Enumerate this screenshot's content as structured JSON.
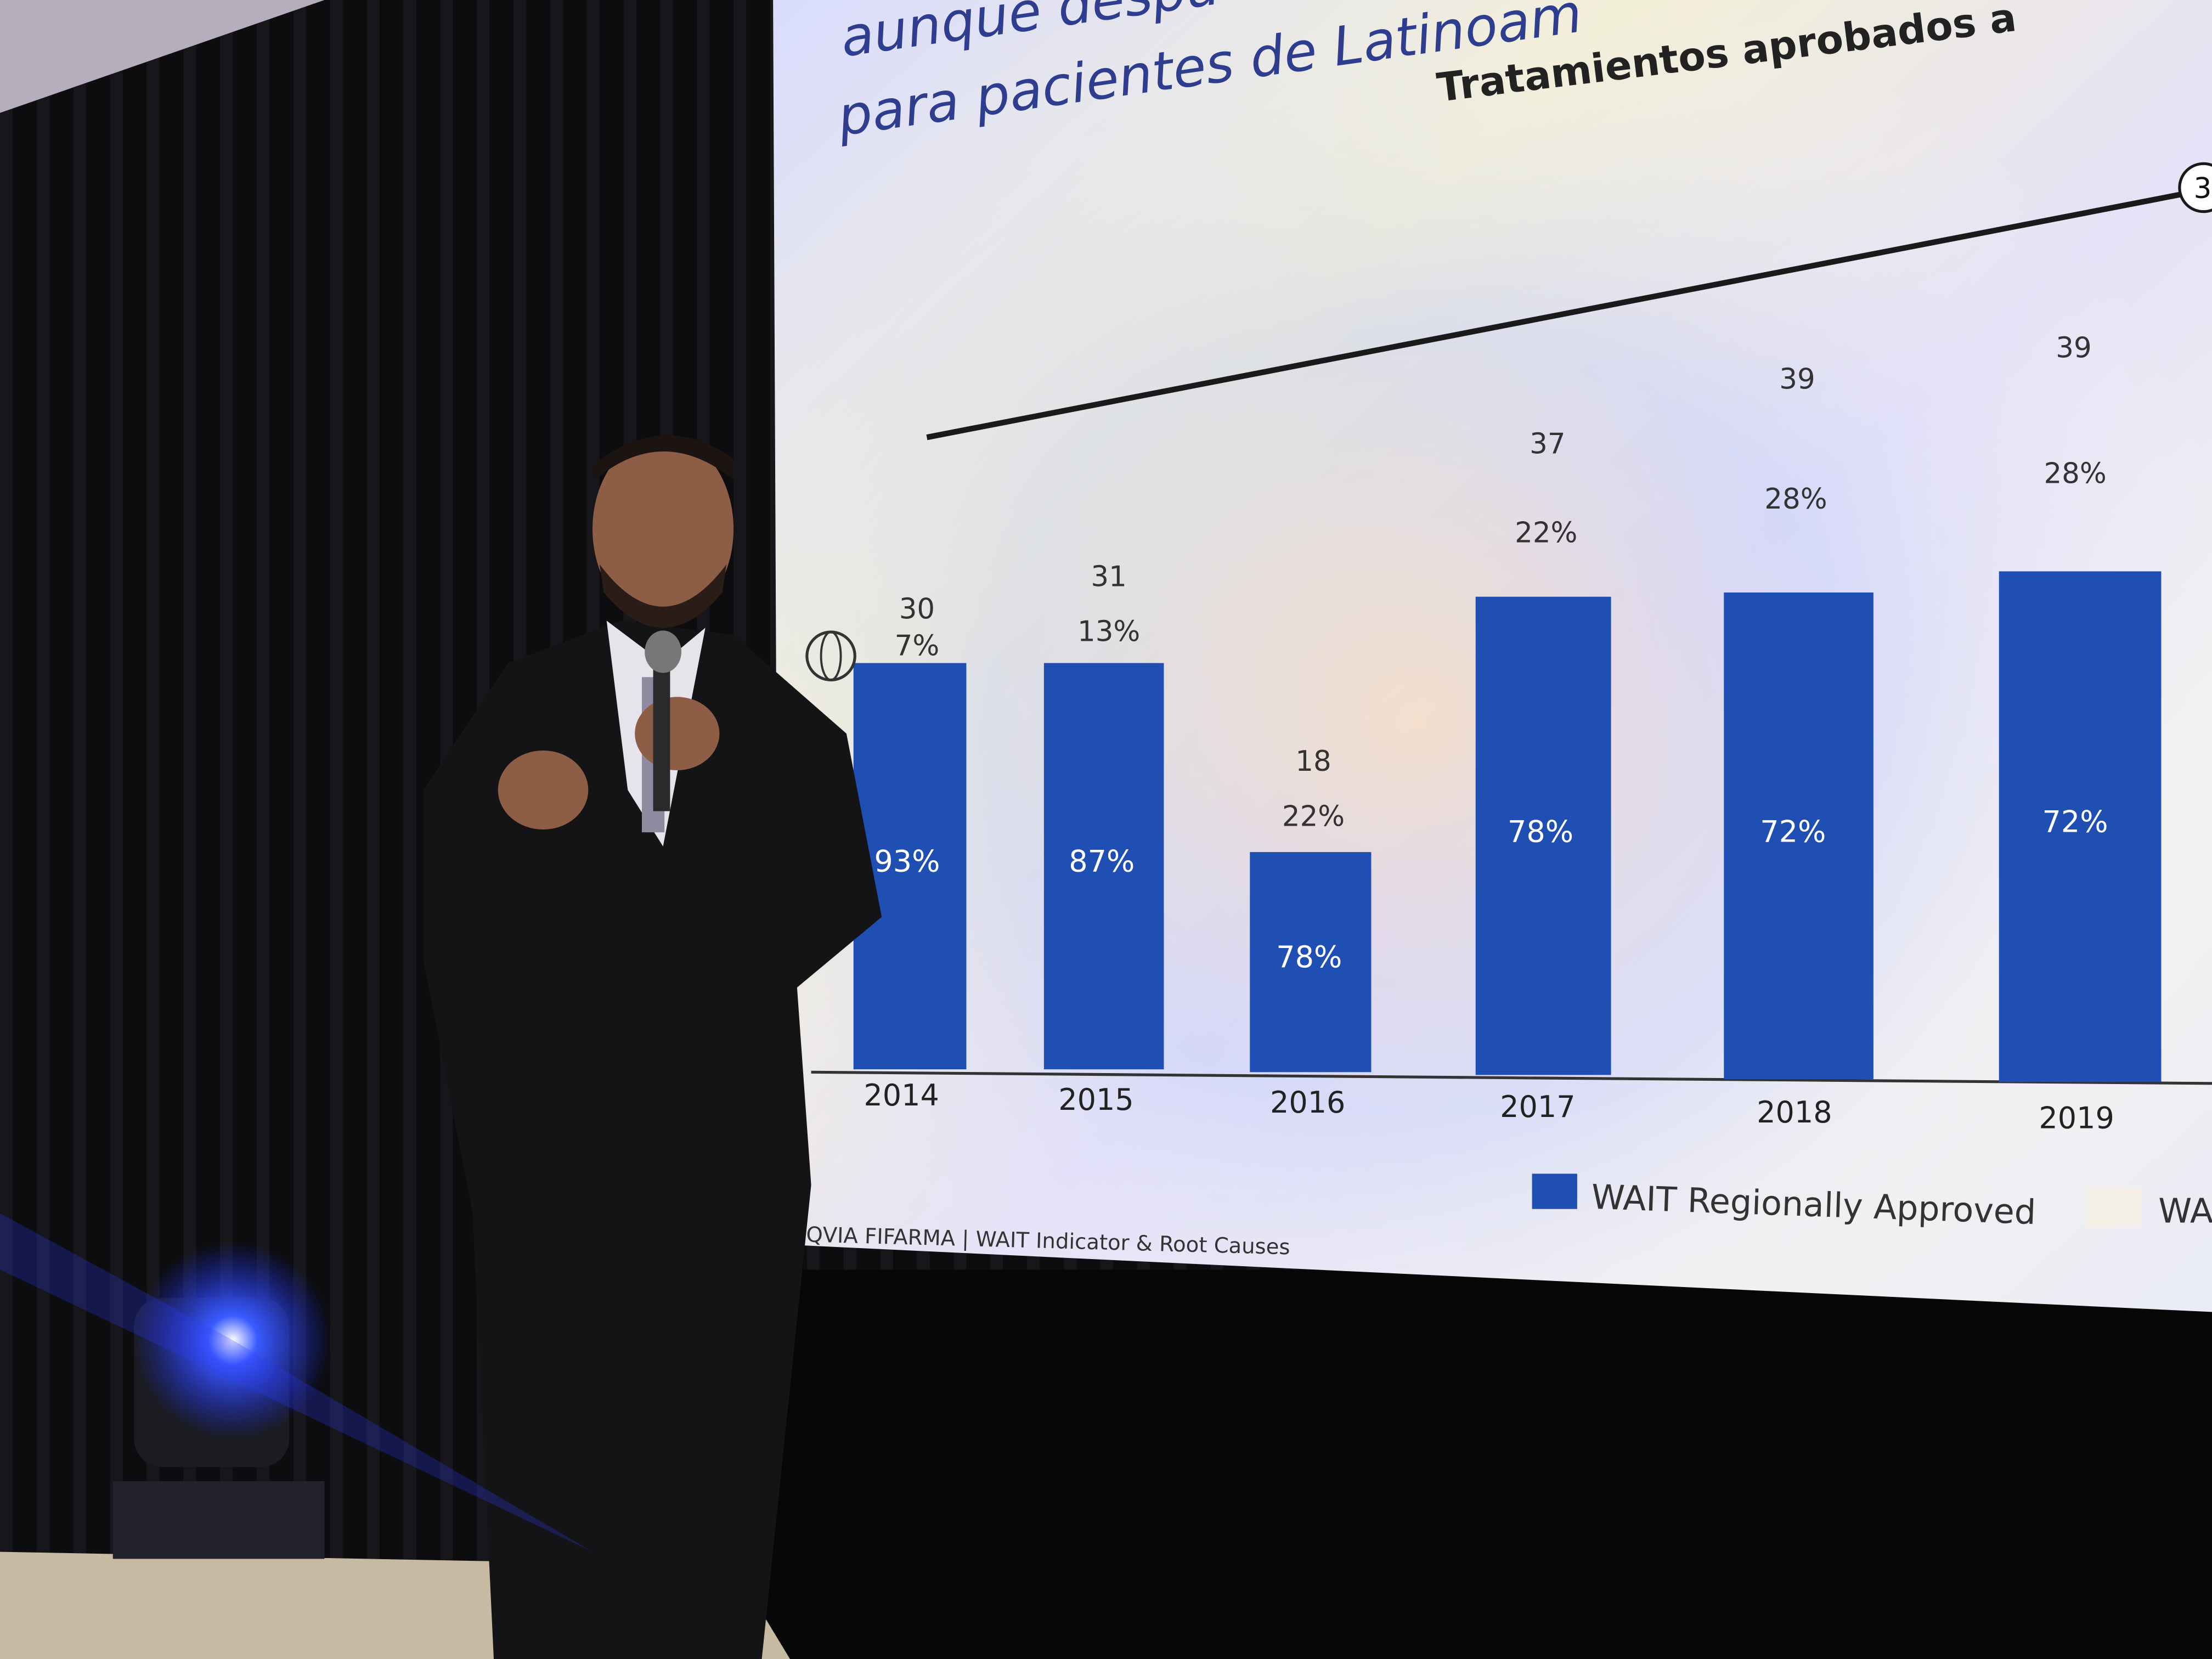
{
  "slide": {
    "title_lines": [
      "aunque despu",
      "para pacientes de Latinoam"
    ],
    "chart_title": "Tratamientos aprobados a",
    "line_end_label": "3",
    "bars": [
      {
        "year": "2014",
        "total": "30",
        "top_share": "7%",
        "bar_share": "93%"
      },
      {
        "year": "2015",
        "total": "31",
        "top_share": "13%",
        "bar_share": "87%"
      },
      {
        "year": "2016",
        "total": "18",
        "top_share": "22%",
        "bar_share": "78%"
      },
      {
        "year": "2017",
        "total": "37",
        "top_share": "22%",
        "bar_share": "78%"
      },
      {
        "year": "2018",
        "total": "39",
        "top_share": "28%",
        "bar_share": "72%"
      },
      {
        "year": "2019",
        "total": "39",
        "top_share": "28%",
        "bar_share": "72%"
      }
    ],
    "legend": [
      "WAIT Regionally Approved",
      "WA"
    ],
    "footer": "IQVIA FIFARMA | WAIT Indicator & Root Causes"
  }
}
